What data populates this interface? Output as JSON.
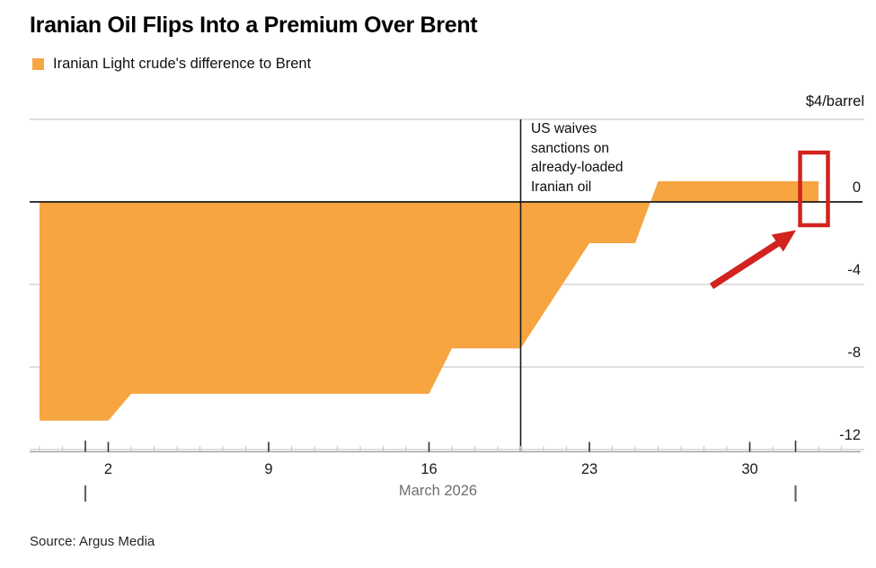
{
  "header": {
    "title": "Iranian Oil Flips Into a Premium Over Brent",
    "legend_label": "Iranian Light crude's difference to Brent"
  },
  "annotation": {
    "text": "US waives\nsanctions on\nalready-loaded\nIranian oil"
  },
  "footer": {
    "source": "Source: Argus Media"
  },
  "chart_data": {
    "type": "area",
    "title": "Iranian Oil Flips Into a Premium Over Brent",
    "series_name": "Iranian Light crude's difference to Brent",
    "unit_label": "$4/barrel",
    "xlabel": "March 2026",
    "ylabel": "",
    "ylim": [
      -12,
      4
    ],
    "yticks": [
      0,
      -4,
      -8,
      -12
    ],
    "xticks": [
      2,
      9,
      16,
      23,
      30
    ],
    "grid": true,
    "legend_position": "top-left",
    "points": [
      {
        "date": "Feb 27",
        "d": -1,
        "value": -10.6
      },
      {
        "date": "Mar 2",
        "d": 2,
        "value": -10.6
      },
      {
        "date": "Mar 3",
        "d": 3,
        "value": -9.3
      },
      {
        "date": "Mar 16",
        "d": 16,
        "value": -9.3
      },
      {
        "date": "Mar 17",
        "d": 17,
        "value": -7.1
      },
      {
        "date": "Mar 20",
        "d": 20,
        "value": -7.1
      },
      {
        "date": "Mar 23",
        "d": 23,
        "value": -2.0
      },
      {
        "date": "Mar 25",
        "d": 25,
        "value": -2.0
      },
      {
        "date": "Mar 26",
        "d": 26,
        "value": 1.0
      },
      {
        "date": "Apr 2",
        "d": 33,
        "value": 1.0
      }
    ],
    "event_line": {
      "d": 20,
      "date": "Mar 20",
      "label": "US waives sanctions on already-loaded Iranian oil"
    },
    "highlight": {
      "shape": "rectangle-outline-with-arrow",
      "at_date": "Apr 2",
      "at_value": 1.0
    },
    "month_markers": [
      {
        "d": 1,
        "label": "Mar 1"
      },
      {
        "d": 32,
        "label": "Apr 1"
      }
    ],
    "colors": {
      "area": "#F7A540",
      "highlight_red": "#D2231E",
      "zero_line": "#1a1a1a",
      "grid": "#cccccc",
      "axis": "#9a9a9a",
      "tick_minor": "#c4c4c4",
      "tick_major": "#333333",
      "tick_label": "#1a1a1a",
      "month_marker": "#666666"
    }
  }
}
